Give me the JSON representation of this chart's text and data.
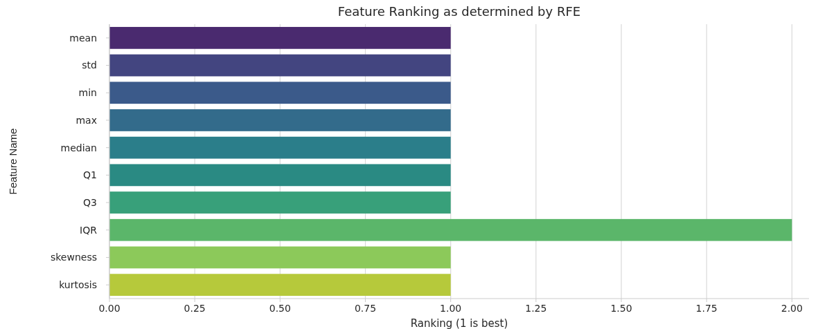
{
  "chart_data": {
    "type": "bar",
    "orientation": "horizontal",
    "title": "Feature Ranking as determined by RFE",
    "xlabel": "Ranking (1 is best)",
    "ylabel": "Feature Name",
    "categories": [
      "mean",
      "std",
      "min",
      "max",
      "median",
      "Q1",
      "Q3",
      "IQR",
      "skewness",
      "kurtosis"
    ],
    "values": [
      1,
      1,
      1,
      1,
      1,
      1,
      1,
      2,
      1,
      1
    ],
    "colors": [
      "#4a2a6f",
      "#434580",
      "#3b5a8a",
      "#336b8b",
      "#2b7e8a",
      "#2a8a83",
      "#38a07a",
      "#5bb66a",
      "#8cc95a",
      "#b6c93b"
    ],
    "xlim": [
      0,
      2.05
    ],
    "xticks": [
      {
        "value": 0,
        "label": "0.00"
      },
      {
        "value": 0.25,
        "label": "0.25"
      },
      {
        "value": 0.5,
        "label": "0.50"
      },
      {
        "value": 0.75,
        "label": "0.75"
      },
      {
        "value": 1,
        "label": "1.00"
      },
      {
        "value": 1.25,
        "label": "1.25"
      },
      {
        "value": 1.5,
        "label": "1.50"
      },
      {
        "value": 1.75,
        "label": "1.75"
      },
      {
        "value": 2,
        "label": "2.00"
      }
    ],
    "grid": "x"
  }
}
